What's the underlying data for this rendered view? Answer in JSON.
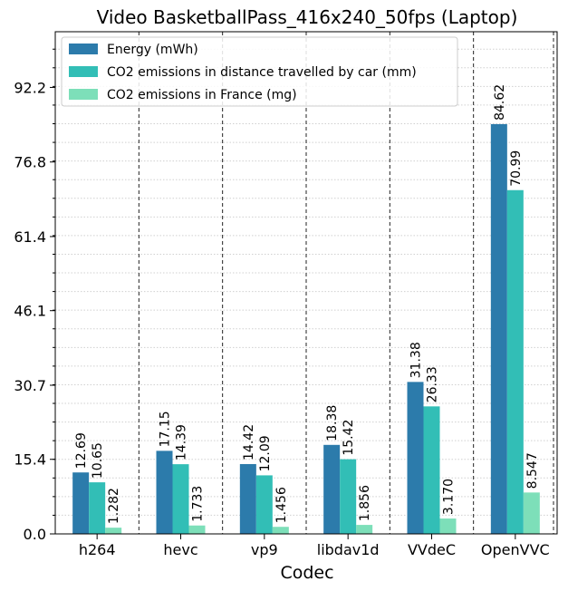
{
  "chart_data": {
    "type": "bar",
    "title": "Video BasketballPass_416x240_50fps (Laptop)",
    "xlabel": "Codec",
    "ylabel": "",
    "categories": [
      "h264",
      "hevc",
      "vp9",
      "libdav1d",
      "VVdeC",
      "OpenVVC"
    ],
    "series": [
      {
        "name": "Energy (mWh)",
        "color": "#2c7bab",
        "values": [
          12.69,
          17.15,
          14.42,
          18.38,
          31.38,
          84.62
        ],
        "labels": [
          "12.69",
          "17.15",
          "14.42",
          "18.38",
          "31.38",
          "84.62"
        ]
      },
      {
        "name": "CO2 emissions in distance travelled by car (mm)",
        "color": "#32beb6",
        "values": [
          10.65,
          14.39,
          12.09,
          15.42,
          26.33,
          70.99
        ],
        "labels": [
          "10.65",
          "14.39",
          "12.09",
          "15.42",
          "26.33",
          "70.99"
        ]
      },
      {
        "name": "CO2 emissions in France (mg)",
        "color": "#7ddfb9",
        "values": [
          1.282,
          1.733,
          1.456,
          1.856,
          3.17,
          8.547
        ],
        "labels": [
          "1.282",
          "1.733",
          "1.456",
          "1.856",
          "3.170",
          "8.547"
        ]
      }
    ],
    "yticks": [
      0.0,
      15.4,
      30.7,
      46.1,
      61.4,
      76.8,
      92.2
    ],
    "ytick_labels": [
      "0.0",
      "15.4",
      "30.7",
      "46.1",
      "61.4",
      "76.8",
      "92.2"
    ],
    "ylim": [
      0,
      103.7
    ],
    "grid": true,
    "legend_position": "top-left"
  }
}
